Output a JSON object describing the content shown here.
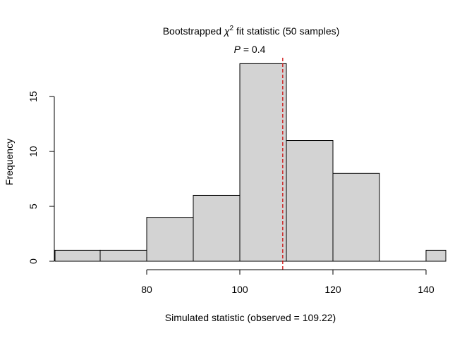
{
  "chart_data": {
    "type": "bar",
    "title_prefix": "Bootstrapped ",
    "title_symbol": "χ",
    "title_superscript": "2",
    "title_suffix": " fit statistic (50 samples)",
    "subtitle_symbol": "P",
    "subtitle_text": " = 0.4",
    "xlabel": "Simulated statistic (observed = 109.22)",
    "ylabel": "Frequency",
    "xlim": [
      60,
      144
    ],
    "ylim": [
      0,
      18
    ],
    "bins": [
      {
        "start": 60,
        "end": 70,
        "count": 1
      },
      {
        "start": 70,
        "end": 80,
        "count": 1
      },
      {
        "start": 80,
        "end": 90,
        "count": 4
      },
      {
        "start": 90,
        "end": 100,
        "count": 6
      },
      {
        "start": 100,
        "end": 110,
        "count": 18
      },
      {
        "start": 110,
        "end": 120,
        "count": 11
      },
      {
        "start": 120,
        "end": 130,
        "count": 8
      },
      {
        "start": 130,
        "end": 140,
        "count": 0
      },
      {
        "start": 140,
        "end": 150,
        "count": 1
      }
    ],
    "x_ticks": [
      80,
      100,
      120,
      140
    ],
    "y_ticks": [
      0,
      5,
      10,
      15
    ],
    "observed_line": {
      "x": 109.22,
      "color": "#cc0000",
      "style": "dashed"
    },
    "bar_fill": "#d3d3d3",
    "bar_stroke": "#000000"
  }
}
